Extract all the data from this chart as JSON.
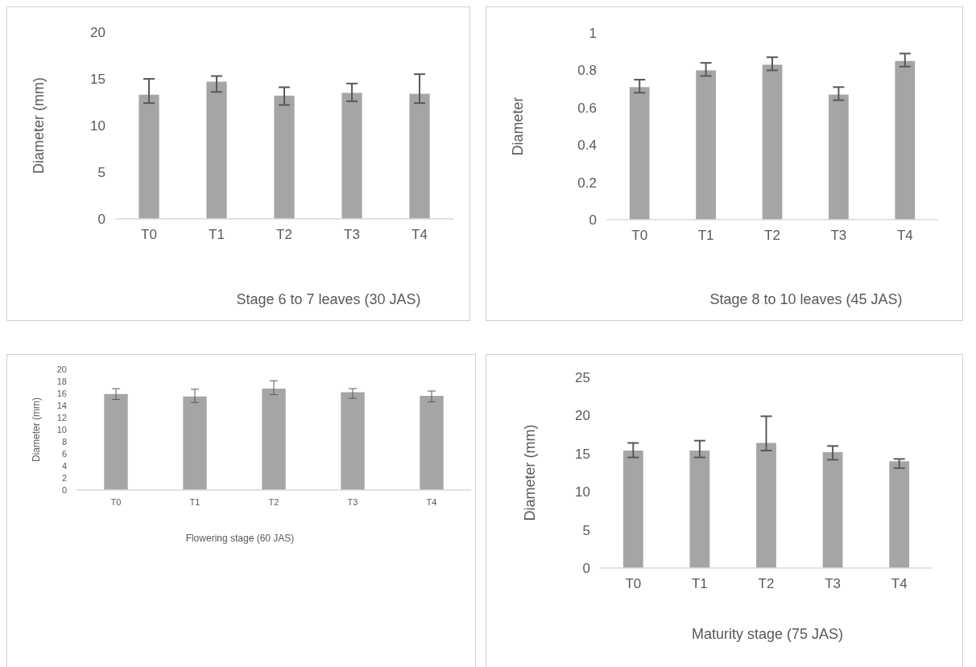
{
  "chart_data": [
    {
      "type": "bar",
      "xlabel": "Stage 6 to 7 leaves (30 JAS)",
      "ylabel": "Diameter (mm)",
      "categories": [
        "T0",
        "T1",
        "T2",
        "T3",
        "T4"
      ],
      "color": "#a5a5a5",
      "values": [
        13.3,
        14.7,
        13.2,
        13.5,
        13.4
      ],
      "errors": [
        [
          12.4,
          15.0
        ],
        [
          13.6,
          15.3
        ],
        [
          12.2,
          14.1
        ],
        [
          12.6,
          14.5
        ],
        [
          12.4,
          15.5
        ]
      ],
      "ylim": [
        0,
        20
      ],
      "yticks": [
        0,
        5,
        10,
        15,
        20
      ],
      "grid": false
    },
    {
      "type": "bar",
      "xlabel": "Stage 8 to 10 leaves (45 JAS)",
      "ylabel": "Diameter",
      "categories": [
        "T0",
        "T1",
        "T2",
        "T3",
        "T4"
      ],
      "color": "#a5a5a5",
      "values": [
        0.71,
        0.8,
        0.83,
        0.67,
        0.85
      ],
      "errors": [
        [
          0.68,
          0.75
        ],
        [
          0.77,
          0.84
        ],
        [
          0.8,
          0.87
        ],
        [
          0.64,
          0.71
        ],
        [
          0.82,
          0.89
        ]
      ],
      "ylim": [
        0,
        1
      ],
      "yticks": [
        0,
        0.2,
        0.4,
        0.6,
        0.8,
        1
      ],
      "grid": false
    },
    {
      "type": "bar",
      "xlabel": "Flowering stage (60 JAS)",
      "ylabel": "Diameter (mm)",
      "categories": [
        "T0",
        "T1",
        "T2",
        "T3",
        "T4"
      ],
      "color": "#a5a5a5",
      "values": [
        15.9,
        15.5,
        16.8,
        16.2,
        15.6
      ],
      "errors": [
        [
          15.0,
          16.8
        ],
        [
          14.5,
          16.7
        ],
        [
          15.8,
          18.1
        ],
        [
          15.2,
          16.8
        ],
        [
          14.6,
          16.4
        ]
      ],
      "ylim": [
        0,
        20
      ],
      "yticks": [
        0,
        2,
        4,
        6,
        8,
        10,
        12,
        14,
        16,
        18,
        20
      ],
      "grid": false
    },
    {
      "type": "bar",
      "xlabel": "Maturity stage (75 JAS)",
      "ylabel": "Diameter (mm)",
      "categories": [
        "T0",
        "T1",
        "T2",
        "T3",
        "T4"
      ],
      "color": "#a5a5a5",
      "values": [
        15.4,
        15.4,
        16.4,
        15.2,
        14.0
      ],
      "errors": [
        [
          14.5,
          16.4
        ],
        [
          14.5,
          16.7
        ],
        [
          15.4,
          19.9
        ],
        [
          14.2,
          16.0
        ],
        [
          13.1,
          14.3
        ]
      ],
      "ylim": [
        0,
        25
      ],
      "yticks": [
        0,
        5,
        10,
        15,
        20,
        25
      ],
      "grid": false
    }
  ]
}
